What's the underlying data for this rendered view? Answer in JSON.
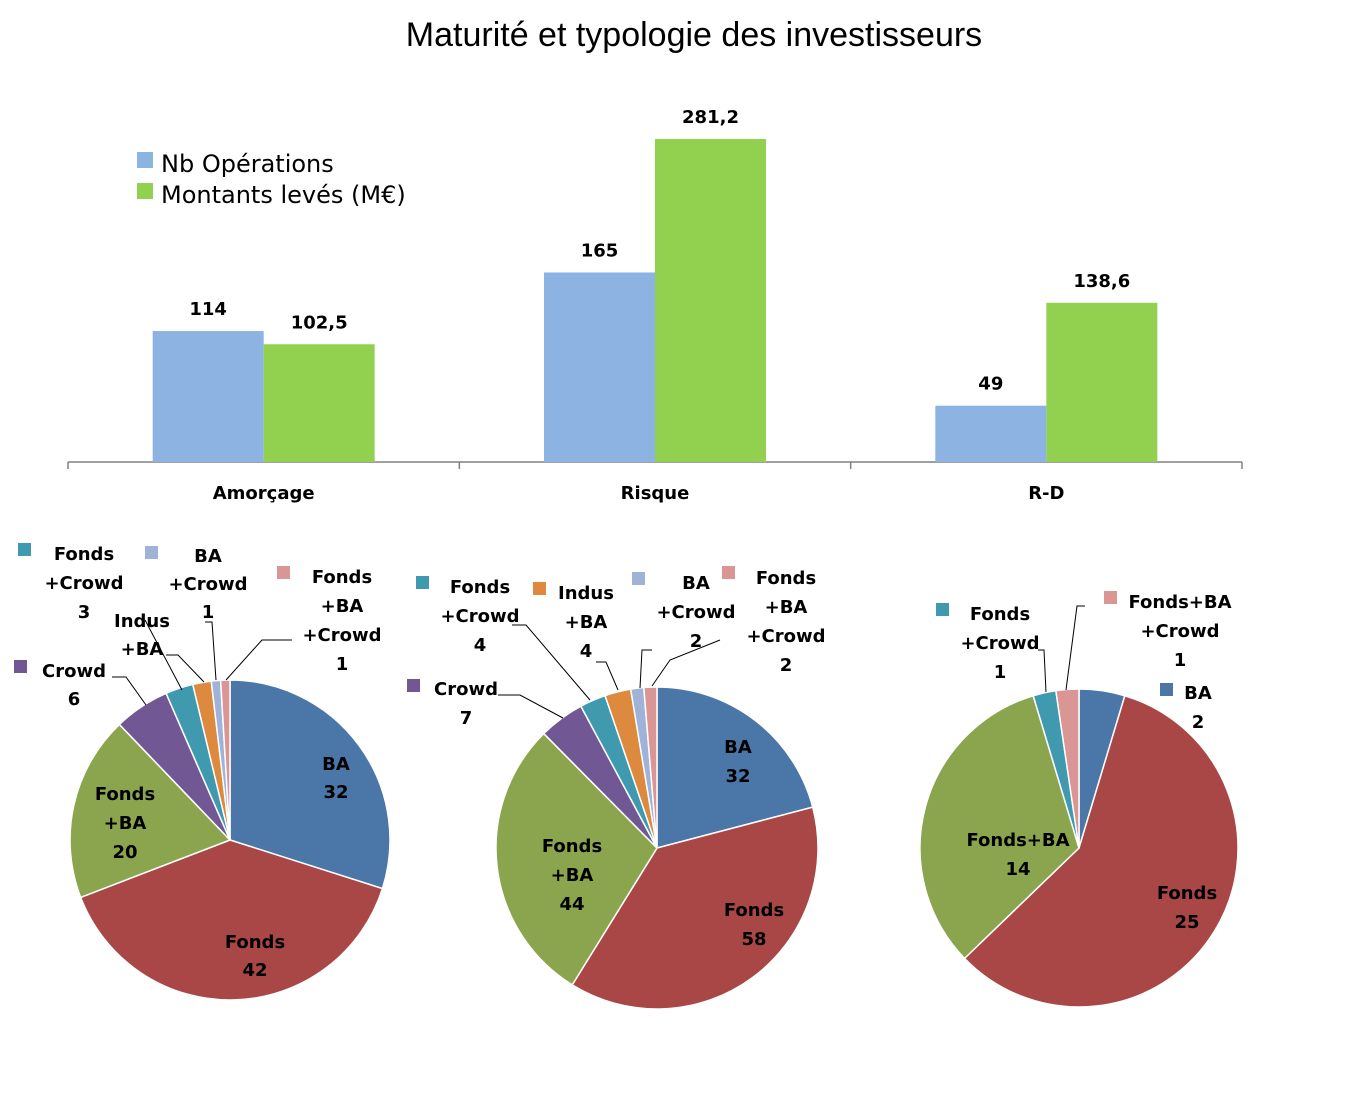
{
  "title": "Maturité et typologie des investisseurs",
  "chart_data": [
    {
      "type": "bar",
      "categories": [
        "Amorçage",
        "Risque",
        "R-D"
      ],
      "series": [
        {
          "name": "Nb Opérations",
          "values": [
            114,
            165,
            49
          ],
          "labels": [
            "114",
            "165",
            "49"
          ],
          "color": "#8db3e2"
        },
        {
          "name": "Montants levés (M€)",
          "values": [
            102.5,
            281.2,
            138.6
          ],
          "labels": [
            "102,5",
            "281,2",
            "138,6"
          ],
          "color": "#92d050"
        }
      ],
      "ylim": [
        0,
        300
      ],
      "legend": "top-left",
      "grid": false
    },
    {
      "type": "pie",
      "group": "Amorçage",
      "slices": [
        {
          "key": "BA",
          "label": [
            "BA",
            "32"
          ],
          "value": 32,
          "color": "#4a76a8"
        },
        {
          "key": "Fonds",
          "label": [
            "Fonds",
            "42"
          ],
          "value": 42,
          "color": "#a94746"
        },
        {
          "key": "Fonds+BA",
          "label": [
            "Fonds",
            "+BA",
            "20"
          ],
          "value": 20,
          "color": "#8ba54f"
        },
        {
          "key": "Crowd",
          "label": [
            "Crowd",
            "6"
          ],
          "value": 6,
          "color": "#715895"
        },
        {
          "key": "Fonds+Crowd",
          "label": [
            "Fonds",
            "+Crowd",
            "3"
          ],
          "value": 3,
          "color": "#3f9aaf"
        },
        {
          "key": "Indus+BA",
          "label": [
            "Indus",
            "+BA"
          ],
          "value": 2,
          "color": "#dd8a3f"
        },
        {
          "key": "BA+Crowd",
          "label": [
            "BA",
            "+Crowd",
            "1"
          ],
          "value": 1,
          "color": "#9fb3d9"
        },
        {
          "key": "Fonds+BA+Crowd",
          "label": [
            "Fonds",
            "+BA",
            "+Crowd",
            "1"
          ],
          "value": 1,
          "color": "#d99694"
        }
      ]
    },
    {
      "type": "pie",
      "group": "Risque",
      "slices": [
        {
          "key": "BA",
          "label": [
            "BA",
            "32"
          ],
          "value": 32,
          "color": "#4a76a8"
        },
        {
          "key": "Fonds",
          "label": [
            "Fonds",
            "58"
          ],
          "value": 58,
          "color": "#a94746"
        },
        {
          "key": "Fonds+BA",
          "label": [
            "Fonds",
            "+BA",
            "44"
          ],
          "value": 44,
          "color": "#8ba54f"
        },
        {
          "key": "Crowd",
          "label": [
            "Crowd",
            "7"
          ],
          "value": 7,
          "color": "#715895"
        },
        {
          "key": "Fonds+Crowd",
          "label": [
            "Fonds",
            "+Crowd",
            "4"
          ],
          "value": 4,
          "color": "#3f9aaf"
        },
        {
          "key": "Indus+BA",
          "label": [
            "Indus",
            "+BA",
            "4"
          ],
          "value": 4,
          "color": "#dd8a3f"
        },
        {
          "key": "BA+Crowd",
          "label": [
            "BA",
            "+Crowd",
            "2"
          ],
          "value": 2,
          "color": "#9fb3d9"
        },
        {
          "key": "Fonds+BA+Crowd",
          "label": [
            "Fonds",
            "+BA",
            "+Crowd",
            "2"
          ],
          "value": 2,
          "color": "#d99694"
        }
      ]
    },
    {
      "type": "pie",
      "group": "R-D",
      "slices": [
        {
          "key": "BA",
          "label": [
            "BA",
            "2"
          ],
          "value": 2,
          "color": "#4a76a8"
        },
        {
          "key": "Fonds",
          "label": [
            "Fonds",
            "25"
          ],
          "value": 25,
          "color": "#a94746"
        },
        {
          "key": "Fonds+BA",
          "label": [
            "Fonds+BA",
            "14"
          ],
          "value": 14,
          "color": "#8ba54f"
        },
        {
          "key": "Fonds+Crowd",
          "label": [
            "Fonds",
            "+Crowd",
            "1"
          ],
          "value": 1,
          "color": "#3f9aaf"
        },
        {
          "key": "Fonds+BA+Crowd",
          "label": [
            "Fonds+BA",
            "+Crowd",
            "1"
          ],
          "value": 1,
          "color": "#d99694"
        }
      ]
    }
  ]
}
